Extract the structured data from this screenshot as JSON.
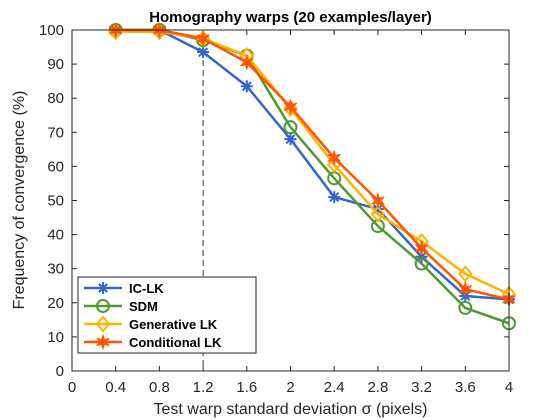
{
  "chart_data": {
    "type": "line",
    "title": "Homography warps (20 examples/layer)",
    "xlabel": "Test warp standard deviation σ (pixels)",
    "ylabel": "Frequency of convergence (%)",
    "xlim": [
      0,
      4
    ],
    "ylim": [
      0,
      100
    ],
    "xticks": [
      "0",
      "0.4",
      "0.8",
      "1.2",
      "1.6",
      "2",
      "2.4",
      "2.8",
      "3.2",
      "3.6",
      "4"
    ],
    "yticks": [
      "0",
      "10",
      "20",
      "30",
      "40",
      "50",
      "60",
      "70",
      "80",
      "90",
      "100"
    ],
    "vline_x": 1.2,
    "legend_position": "bottom-left",
    "x": [
      0.4,
      0.8,
      1.2,
      1.6,
      2.0,
      2.4,
      2.8,
      3.2,
      3.6,
      4.0
    ],
    "series": [
      {
        "name": "IC-LK",
        "color": "#3366cc",
        "marker": "asterisk",
        "values": [
          100,
          100,
          93.5,
          83.5,
          68,
          51,
          47.5,
          33.5,
          22,
          21
        ]
      },
      {
        "name": "SDM",
        "color": "#4d9933",
        "marker": "circle",
        "values": [
          100,
          100,
          97,
          92.5,
          71.5,
          56.5,
          42.5,
          31.5,
          18.5,
          14
        ]
      },
      {
        "name": "Generative LK",
        "color": "#ffb300",
        "marker": "diamond",
        "values": [
          99.5,
          99.5,
          97.5,
          92.5,
          77,
          60.5,
          46,
          38,
          28.5,
          22.5
        ]
      },
      {
        "name": "Conditional LK",
        "color": "#ff5500",
        "marker": "star",
        "values": [
          100,
          100,
          97.5,
          90.5,
          77.5,
          62.5,
          50,
          36,
          24,
          21
        ]
      }
    ]
  }
}
